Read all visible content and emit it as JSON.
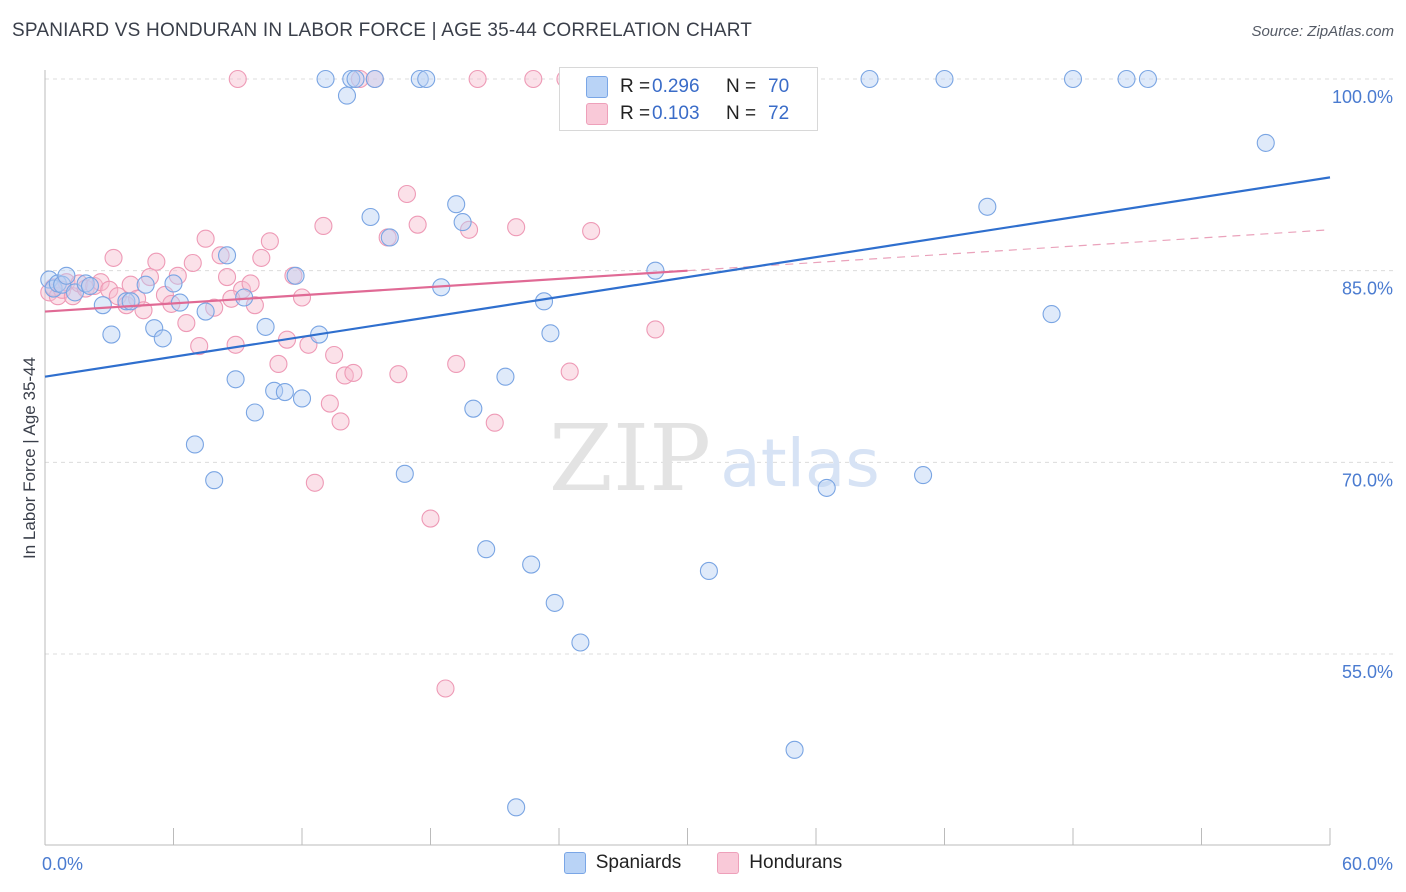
{
  "header": {
    "title": "SPANIARD VS HONDURAN IN LABOR FORCE | AGE 35-44 CORRELATION CHART",
    "source": "Source: ZipAtlas.com"
  },
  "watermark": {
    "zip": "ZIP",
    "atlas": "atlas"
  },
  "legend": {
    "rows": [
      {
        "r_label": "R =",
        "r_value": "0.296",
        "n_label": "N =",
        "n_value": "70",
        "color": "#a9c8f4"
      },
      {
        "r_label": "R =",
        "r_value": "0.103",
        "n_label": "N =",
        "n_value": "72",
        "color": "#f7b8cc"
      }
    ]
  },
  "bottom_legend": {
    "spaniards": "Spaniards",
    "hondurans": "Hondurans"
  },
  "chart_data": {
    "type": "scatter",
    "title": "SPANIARD VS HONDURAN IN LABOR FORCE | AGE 35-44 CORRELATION CHART",
    "xlabel": "",
    "ylabel": "In Labor Force | Age 35-44",
    "xlim": [
      0,
      60
    ],
    "ylim": [
      40,
      102
    ],
    "x_tick_labels": [
      "0.0%",
      "60.0%"
    ],
    "y_ticks": [
      55,
      70,
      85,
      100
    ],
    "y_tick_labels": [
      "55.0%",
      "70.0%",
      "85.0%",
      "100.0%"
    ],
    "grid": true,
    "legend_position": "top-center",
    "colors": {
      "spaniards": "#4a86d8",
      "hondurans": "#e8709a",
      "spaniards_line": "#2f6fce",
      "hondurans_line": "#e06a95"
    },
    "series": [
      {
        "name": "Spaniards",
        "r": 0.296,
        "n": 70,
        "trend": {
          "x": [
            0,
            60
          ],
          "y": [
            76.7,
            92.3
          ]
        },
        "points": [
          [
            0.2,
            84.3
          ],
          [
            0.4,
            83.6
          ],
          [
            0.6,
            84.0
          ],
          [
            0.8,
            83.9
          ],
          [
            1.0,
            84.6
          ],
          [
            1.4,
            83.3
          ],
          [
            1.9,
            84.0
          ],
          [
            2.1,
            83.8
          ],
          [
            2.7,
            82.3
          ],
          [
            3.1,
            80.0
          ],
          [
            3.8,
            82.6
          ],
          [
            4.0,
            82.6
          ],
          [
            4.7,
            83.9
          ],
          [
            5.1,
            80.5
          ],
          [
            5.5,
            79.7
          ],
          [
            6.0,
            84.0
          ],
          [
            6.3,
            82.5
          ],
          [
            7.0,
            71.4
          ],
          [
            7.5,
            81.8
          ],
          [
            7.9,
            68.6
          ],
          [
            8.5,
            86.2
          ],
          [
            8.9,
            76.5
          ],
          [
            9.3,
            82.9
          ],
          [
            9.8,
            73.9
          ],
          [
            10.3,
            80.6
          ],
          [
            10.7,
            75.6
          ],
          [
            11.2,
            75.5
          ],
          [
            11.7,
            84.6
          ],
          [
            12.0,
            75.0
          ],
          [
            12.8,
            80.0
          ],
          [
            13.1,
            100.0
          ],
          [
            14.1,
            98.7
          ],
          [
            14.3,
            100.0
          ],
          [
            14.5,
            100.0
          ],
          [
            15.2,
            89.2
          ],
          [
            15.4,
            100.0
          ],
          [
            16.1,
            87.6
          ],
          [
            16.8,
            69.1
          ],
          [
            17.5,
            100.0
          ],
          [
            17.8,
            100.0
          ],
          [
            18.5,
            83.7
          ],
          [
            19.2,
            90.2
          ],
          [
            19.5,
            88.8
          ],
          [
            20.0,
            74.2
          ],
          [
            20.6,
            63.2
          ],
          [
            21.5,
            76.7
          ],
          [
            22.7,
            62.0
          ],
          [
            22.0,
            43.0
          ],
          [
            23.3,
            82.6
          ],
          [
            23.6,
            80.1
          ],
          [
            23.8,
            59.0
          ],
          [
            25.0,
            55.9
          ],
          [
            25.5,
            100.0
          ],
          [
            26.0,
            100.0
          ],
          [
            26.5,
            98.0
          ],
          [
            27.0,
            100.0
          ],
          [
            28.5,
            85.0
          ],
          [
            30.8,
            100.0
          ],
          [
            31.0,
            61.5
          ],
          [
            35.0,
            47.5
          ],
          [
            36.5,
            68.0
          ],
          [
            38.5,
            100.0
          ],
          [
            41.0,
            69.0
          ],
          [
            42.0,
            100.0
          ],
          [
            44.0,
            90.0
          ],
          [
            47.0,
            81.6
          ],
          [
            48.0,
            100.0
          ],
          [
            50.5,
            100.0
          ],
          [
            51.5,
            100.0
          ],
          [
            57.0,
            95.0
          ]
        ]
      },
      {
        "name": "Hondurans",
        "r": 0.103,
        "n": 72,
        "trend": {
          "x": [
            0,
            30
          ],
          "y": [
            81.8,
            85.0
          ]
        },
        "trend_extension": {
          "x": [
            30,
            60
          ],
          "y": [
            85.0,
            88.2
          ]
        },
        "points": [
          [
            0.2,
            83.3
          ],
          [
            0.4,
            83.7
          ],
          [
            0.6,
            83.0
          ],
          [
            0.8,
            83.5
          ],
          [
            1.0,
            84.1
          ],
          [
            1.3,
            83.0
          ],
          [
            1.6,
            84.0
          ],
          [
            1.9,
            83.6
          ],
          [
            2.3,
            83.8
          ],
          [
            2.6,
            84.1
          ],
          [
            3.0,
            83.5
          ],
          [
            3.4,
            83.0
          ],
          [
            3.8,
            82.3
          ],
          [
            4.0,
            83.9
          ],
          [
            4.3,
            82.8
          ],
          [
            4.6,
            81.9
          ],
          [
            4.9,
            84.5
          ],
          [
            5.2,
            85.7
          ],
          [
            5.6,
            83.1
          ],
          [
            5.9,
            82.4
          ],
          [
            6.2,
            84.6
          ],
          [
            6.6,
            80.9
          ],
          [
            6.9,
            85.6
          ],
          [
            7.2,
            79.1
          ],
          [
            7.5,
            87.5
          ],
          [
            7.9,
            82.1
          ],
          [
            8.2,
            86.2
          ],
          [
            8.5,
            84.5
          ],
          [
            8.9,
            79.2
          ],
          [
            9.2,
            83.5
          ],
          [
            9.6,
            84.0
          ],
          [
            9.8,
            82.3
          ],
          [
            10.1,
            86.0
          ],
          [
            10.5,
            87.3
          ],
          [
            10.9,
            77.7
          ],
          [
            11.3,
            79.6
          ],
          [
            11.6,
            84.6
          ],
          [
            12.0,
            82.9
          ],
          [
            12.3,
            79.2
          ],
          [
            12.6,
            68.4
          ],
          [
            13.0,
            88.5
          ],
          [
            13.3,
            74.6
          ],
          [
            13.8,
            73.2
          ],
          [
            14.0,
            76.8
          ],
          [
            14.4,
            77.0
          ],
          [
            14.7,
            100.0
          ],
          [
            15.4,
            100.0
          ],
          [
            16.0,
            87.6
          ],
          [
            16.5,
            76.9
          ],
          [
            16.9,
            91.0
          ],
          [
            17.4,
            88.6
          ],
          [
            18.0,
            65.6
          ],
          [
            18.7,
            52.3
          ],
          [
            19.2,
            77.7
          ],
          [
            19.8,
            88.2
          ],
          [
            20.2,
            100.0
          ],
          [
            21.0,
            73.1
          ],
          [
            22.0,
            88.4
          ],
          [
            22.8,
            100.0
          ],
          [
            24.3,
            100.0
          ],
          [
            24.5,
            77.1
          ],
          [
            25.3,
            100.0
          ],
          [
            25.5,
            88.1
          ],
          [
            26.0,
            100.0
          ],
          [
            27.4,
            100.0
          ],
          [
            28.5,
            80.4
          ],
          [
            29.0,
            100.0
          ],
          [
            31.0,
            100.0
          ],
          [
            3.2,
            86.0
          ],
          [
            9.0,
            100.0
          ],
          [
            13.5,
            78.4
          ],
          [
            8.7,
            82.8
          ]
        ]
      }
    ]
  }
}
